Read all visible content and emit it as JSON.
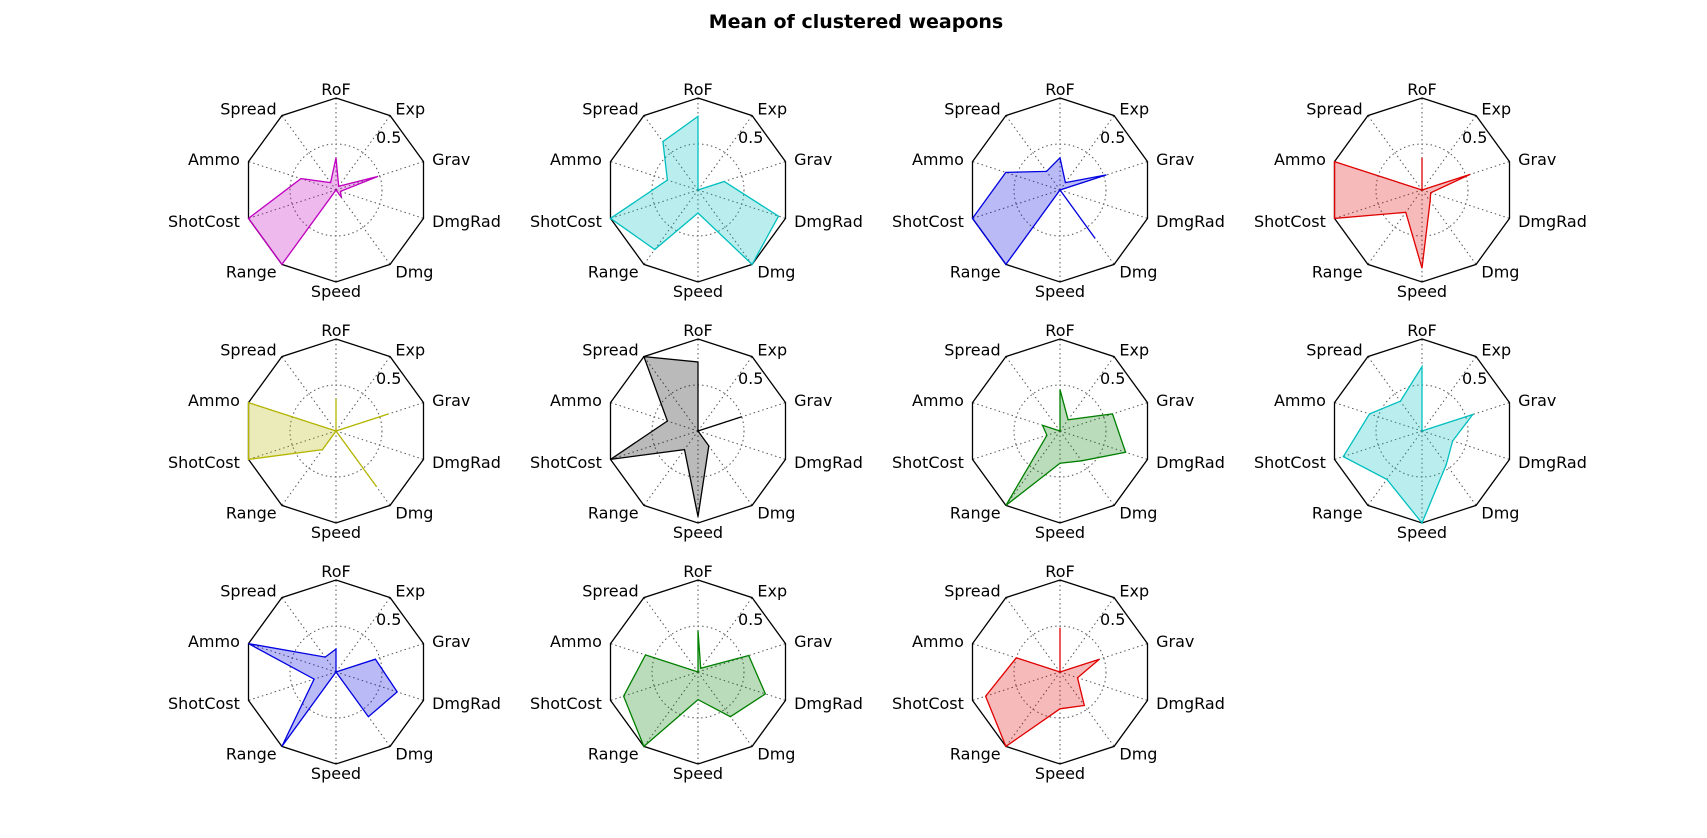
{
  "chart_data": {
    "type": "radar",
    "title": "Mean of clustered weapons",
    "axes": [
      "RoF",
      "Exp",
      "Grav",
      "DmgRad",
      "Dmg",
      "Speed",
      "Range",
      "ShotCost",
      "Ammo",
      "Spread"
    ],
    "rlim": [
      0,
      1
    ],
    "ring_label": "0.5",
    "grid": true,
    "layout": "3 rows x 4 columns",
    "clusters": [
      {
        "color": "#c000c0",
        "values": [
          0.35,
          0.05,
          0.48,
          0.05,
          0.1,
          0.0,
          1.0,
          1.0,
          0.4,
          0.1
        ]
      },
      {
        "color": "#00bfbf",
        "values": [
          0.8,
          0.0,
          0.3,
          0.92,
          1.0,
          0.25,
          0.8,
          1.0,
          0.35,
          0.65
        ]
      },
      {
        "color": "#0000e0",
        "values": [
          0.35,
          0.1,
          0.53,
          0.0,
          0.65,
          0.0,
          1.0,
          1.0,
          0.62,
          0.25
        ]
      },
      {
        "color": "#e00000",
        "values": [
          0.35,
          0.0,
          0.55,
          0.1,
          0.15,
          0.85,
          0.3,
          1.0,
          1.0,
          0.0
        ]
      },
      {
        "color": "#b5b500",
        "values": [
          0.35,
          0.0,
          0.6,
          0.0,
          0.75,
          0.0,
          0.25,
          1.0,
          1.0,
          0.0
        ]
      },
      {
        "color": "#000000",
        "values": [
          0.75,
          0.0,
          0.5,
          0.0,
          0.2,
          0.93,
          0.25,
          1.0,
          0.35,
          1.0
        ]
      },
      {
        "color": "#007f00",
        "values": [
          0.45,
          0.15,
          0.6,
          0.75,
          0.4,
          0.35,
          1.0,
          0.15,
          0.2,
          0.0
        ]
      },
      {
        "color": "#00bfbf",
        "values": [
          0.7,
          0.0,
          0.58,
          0.35,
          0.45,
          1.0,
          0.65,
          0.9,
          0.6,
          0.4
        ]
      },
      {
        "color": "#0000e0",
        "values": [
          0.25,
          0.0,
          0.45,
          0.7,
          0.6,
          0.0,
          1.0,
          0.25,
          1.0,
          0.2
        ]
      },
      {
        "color": "#007f00",
        "values": [
          0.45,
          0.05,
          0.58,
          0.77,
          0.6,
          0.3,
          1.0,
          0.85,
          0.6,
          0.0
        ]
      },
      {
        "color": "#e00000",
        "values": [
          0.48,
          0.0,
          0.45,
          0.2,
          0.45,
          0.4,
          1.0,
          0.85,
          0.5,
          0.0
        ]
      }
    ]
  }
}
